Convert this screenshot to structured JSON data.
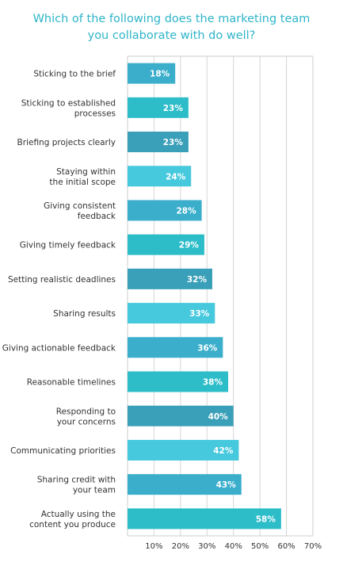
{
  "title_lines": [
    "Which of the following does the marketing team",
    "you collaborate with do well?"
  ],
  "chart_data": {
    "type": "bar",
    "orientation": "horizontal",
    "title": "Which of the following does the marketing team you collaborate with do well?",
    "categories": [
      [
        "Sticking to the brief"
      ],
      [
        "Sticking to established",
        "processes"
      ],
      [
        "Briefing projects clearly"
      ],
      [
        "Staying within",
        "the initial scope"
      ],
      [
        "Giving consistent",
        "feedback"
      ],
      [
        "Giving timely feedback"
      ],
      [
        "Setting realistic deadlines"
      ],
      [
        "Sharing results"
      ],
      [
        "Giving actionable feedback"
      ],
      [
        "Reasonable timelines"
      ],
      [
        "Responding to",
        "your concerns"
      ],
      [
        "Communicating priorities"
      ],
      [
        "Sharing credit with",
        "your team"
      ],
      [
        "Actually using the",
        "content you produce"
      ]
    ],
    "values": [
      18,
      23,
      23,
      24,
      28,
      29,
      32,
      33,
      36,
      38,
      40,
      42,
      43,
      58
    ],
    "value_suffix": "%",
    "xlim": [
      0,
      70
    ],
    "xticks": [
      10,
      20,
      30,
      40,
      50,
      60,
      70
    ],
    "xtick_suffix": "%",
    "grid": true,
    "colors": [
      "#3aaecb",
      "#2dbdc9",
      "#3a9fb8",
      "#47c9dd"
    ]
  }
}
